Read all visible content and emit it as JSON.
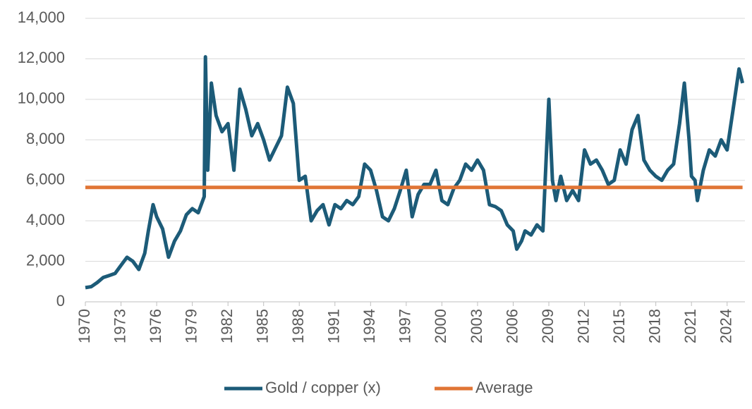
{
  "chart_data": {
    "type": "line",
    "ylim": [
      0,
      14000
    ],
    "yticks": [
      0,
      {
        "value": 2000,
        "label": "2,000"
      },
      {
        "value": 4000,
        "label": "4,000"
      },
      {
        "value": 6000,
        "label": "6,000"
      },
      {
        "value": 8000,
        "label": "8,000"
      },
      {
        "value": 10000,
        "label": "10,000"
      },
      {
        "value": 12000,
        "label": "12,000"
      },
      {
        "value": 14000,
        "label": "14,000"
      }
    ],
    "xlim": [
      1970,
      2025.5
    ],
    "xticks": [
      1970,
      1973,
      1976,
      1979,
      1982,
      1985,
      1988,
      1991,
      1994,
      1997,
      2000,
      2003,
      2006,
      2009,
      2012,
      2015,
      2018,
      2021,
      2024
    ],
    "grid": true,
    "legend": "bottom",
    "series": [
      {
        "name": "Gold / copper (x)",
        "color": "#1c5b78",
        "x": [
          1970,
          1970.5,
          1971,
          1971.5,
          1972,
          1972.5,
          1973,
          1973.5,
          1974,
          1974.5,
          1975,
          1975.3,
          1975.7,
          1976,
          1976.5,
          1977,
          1977.5,
          1978,
          1978.5,
          1979,
          1979.5,
          1980,
          1980.1,
          1980.3,
          1980.6,
          1981,
          1981.5,
          1982,
          1982.5,
          1983,
          1983.5,
          1984,
          1984.5,
          1985,
          1985.5,
          1986,
          1986.5,
          1987,
          1987.5,
          1988,
          1988.5,
          1989,
          1989.5,
          1990,
          1990.5,
          1991,
          1991.5,
          1992,
          1992.5,
          1993,
          1993.5,
          1994,
          1994.5,
          1995,
          1995.5,
          1996,
          1996.5,
          1997,
          1997.5,
          1998,
          1998.5,
          1999,
          1999.5,
          2000,
          2000.5,
          2001,
          2001.5,
          2002,
          2002.5,
          2003,
          2003.5,
          2004,
          2004.5,
          2005,
          2005.5,
          2006,
          2006.3,
          2006.7,
          2007,
          2007.5,
          2008,
          2008.5,
          2009,
          2009.3,
          2009.6,
          2010,
          2010.5,
          2011,
          2011.5,
          2012,
          2012.5,
          2013,
          2013.5,
          2014,
          2014.5,
          2015,
          2015.5,
          2016,
          2016.5,
          2017,
          2017.5,
          2018,
          2018.5,
          2019,
          2019.5,
          2020,
          2020.4,
          2020.8,
          2021,
          2021.3,
          2021.5,
          2022,
          2022.5,
          2023,
          2023.5,
          2024,
          2024.5,
          2025,
          2025.3
        ],
        "values": [
          700,
          750,
          950,
          1200,
          1300,
          1400,
          1800,
          2200,
          2000,
          1600,
          2400,
          3500,
          4800,
          4200,
          3600,
          2200,
          3000,
          3500,
          4300,
          4600,
          4400,
          5200,
          12100,
          6500,
          10800,
          9200,
          8400,
          8800,
          6500,
          10500,
          9500,
          8200,
          8800,
          8000,
          7000,
          7600,
          8200,
          10600,
          9800,
          6000,
          6200,
          4000,
          4500,
          4800,
          3800,
          4800,
          4600,
          5000,
          4800,
          5200,
          6800,
          6500,
          5500,
          4200,
          4000,
          4600,
          5500,
          6500,
          4200,
          5300,
          5800,
          5800,
          6500,
          5000,
          4800,
          5600,
          6000,
          6800,
          6500,
          7000,
          6500,
          4800,
          4700,
          4500,
          3800,
          3500,
          2600,
          3000,
          3500,
          3300,
          3800,
          3500,
          10000,
          6000,
          5000,
          6200,
          5000,
          5500,
          5000,
          7500,
          6800,
          7000,
          6500,
          5800,
          6000,
          7500,
          6800,
          8500,
          9200,
          7000,
          6500,
          6200,
          6000,
          6500,
          6800,
          8800,
          10800,
          8000,
          6200,
          6000,
          5000,
          6500,
          7500,
          7200,
          8000,
          7500,
          9500,
          11500,
          10800
        ]
      },
      {
        "name": "Average",
        "color": "#e07535",
        "x": [
          1970,
          2025.3
        ],
        "values": [
          5650,
          5650
        ]
      }
    ]
  }
}
